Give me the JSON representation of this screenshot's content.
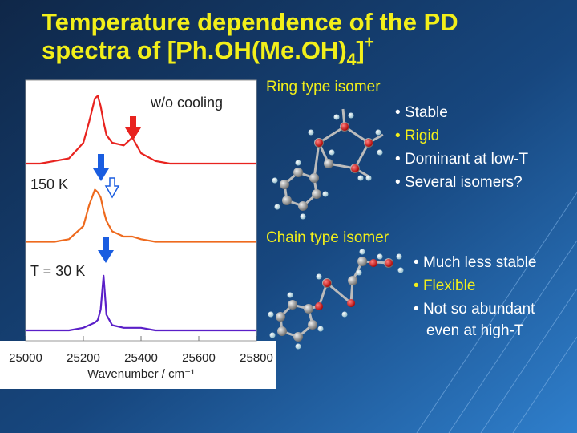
{
  "slide": {
    "title": {
      "line1": "Temperature dependence of the PD",
      "line2": "spectra of [Ph.OH(Me.OH)",
      "sub": "4",
      "close": "]",
      "sup": "+"
    },
    "ring": {
      "heading": "Ring type isomer",
      "bullets": [
        "Stable",
        "Rigid",
        "Dominant at low-T",
        "Several isomers?"
      ]
    },
    "chain": {
      "heading": "Chain type isomer",
      "bullets": [
        "Much less stable",
        "Flexible",
        "Not so abundant",
        "even at high-T"
      ]
    }
  },
  "chart_data": {
    "type": "line",
    "xlabel": "Wavenumber / cm⁻¹",
    "x": [
      25000,
      25050,
      25100,
      25150,
      25200,
      25220,
      25240,
      25250,
      25260,
      25270,
      25280,
      25300,
      25340,
      25370,
      25400,
      25450,
      25500,
      25600,
      25700,
      25800
    ],
    "xlim": [
      25000,
      25800
    ],
    "xticks": [
      25000,
      25200,
      25400,
      25600,
      25800
    ],
    "ylim": [
      0,
      1
    ],
    "series": [
      {
        "name": "w/o cooling",
        "color": "#e8231f",
        "values": [
          0.68,
          0.68,
          0.69,
          0.7,
          0.76,
          0.84,
          0.93,
          0.94,
          0.9,
          0.84,
          0.79,
          0.76,
          0.75,
          0.78,
          0.72,
          0.69,
          0.68,
          0.68,
          0.68,
          0.68
        ]
      },
      {
        "name": "150 K",
        "color": "#ee6a1e",
        "values": [
          0.38,
          0.38,
          0.38,
          0.39,
          0.44,
          0.52,
          0.58,
          0.57,
          0.55,
          0.5,
          0.46,
          0.42,
          0.4,
          0.4,
          0.39,
          0.38,
          0.38,
          0.38,
          0.38,
          0.38
        ]
      },
      {
        "name": "T = 30 K",
        "color": "#5a1fc8",
        "values": [
          0.04,
          0.04,
          0.04,
          0.04,
          0.05,
          0.06,
          0.07,
          0.08,
          0.12,
          0.25,
          0.1,
          0.06,
          0.05,
          0.05,
          0.05,
          0.04,
          0.04,
          0.04,
          0.04,
          0.04
        ]
      }
    ]
  }
}
